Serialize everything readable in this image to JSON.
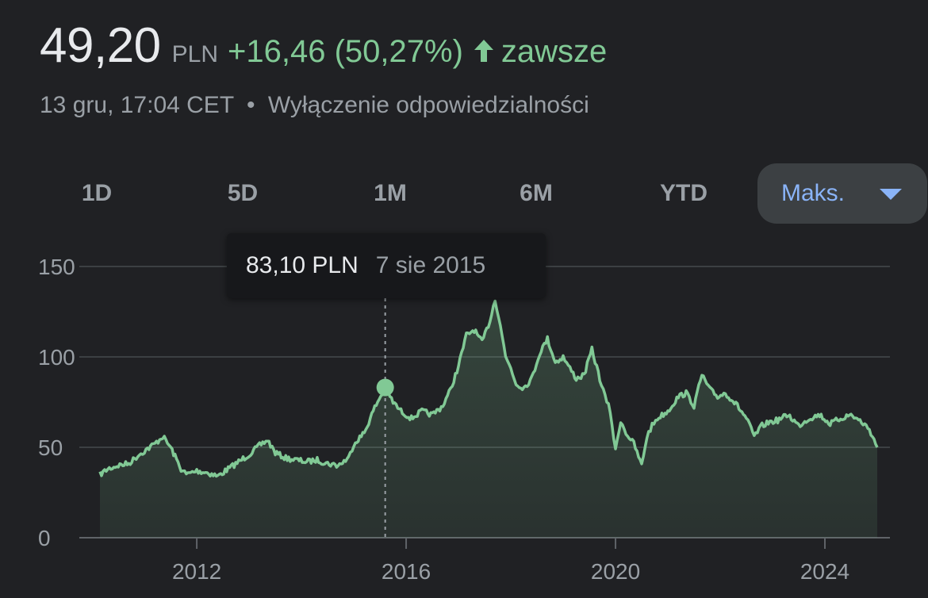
{
  "header": {
    "price": "49,20",
    "currency": "PLN",
    "change": "+16,46 (50,27%)",
    "range_word": "zawsze",
    "arrow_icon": "arrow-up-icon",
    "timestamp": "13 gru, 17:04 CET",
    "separator": "•",
    "disclaimer": "Wyłączenie odpowiedzialności"
  },
  "tabs": [
    {
      "label": "1D"
    },
    {
      "label": "5D"
    },
    {
      "label": "1M"
    },
    {
      "label": "6M"
    },
    {
      "label": "YTD"
    },
    {
      "label": "Maks.",
      "active": true
    }
  ],
  "tooltip": {
    "value": "83,10 PLN",
    "date": "7 sie 2015"
  },
  "colors": {
    "positive": "#81c995",
    "accent": "#8ab4f8",
    "background": "#202124"
  },
  "chart_data": {
    "type": "area",
    "title": "",
    "xlabel": "",
    "ylabel": "",
    "xlim": [
      2010.15,
      2025.0
    ],
    "ylim": [
      0,
      150
    ],
    "y_ticks": [
      "0",
      "50",
      "100",
      "150"
    ],
    "y_tick_values": [
      0,
      50,
      100,
      150
    ],
    "x_ticks": [
      "2012",
      "2016",
      "2020",
      "2024"
    ],
    "x_tick_values": [
      2012,
      2016,
      2020,
      2024
    ],
    "grid": true,
    "hover": {
      "x": 2015.6,
      "y": 83.1
    },
    "series": [
      {
        "x": [
          2010.15,
          2010.3,
          2010.5,
          2010.7,
          2010.9,
          2011.0,
          2011.2,
          2011.35,
          2011.5,
          2011.7,
          2011.8,
          2012.0,
          2012.2,
          2012.4,
          2012.6,
          2012.8,
          2013.0,
          2013.2,
          2013.35,
          2013.5,
          2013.7,
          2013.9,
          2014.1,
          2014.3,
          2014.5,
          2014.7,
          2014.9,
          2015.0,
          2015.2,
          2015.4,
          2015.6,
          2015.75,
          2015.9,
          2016.1,
          2016.3,
          2016.5,
          2016.7,
          2016.85,
          2017.0,
          2017.15,
          2017.3,
          2017.45,
          2017.6,
          2017.7,
          2017.8,
          2017.9,
          2018.0,
          2018.1,
          2018.25,
          2018.4,
          2018.55,
          2018.7,
          2018.85,
          2019.0,
          2019.1,
          2019.25,
          2019.4,
          2019.55,
          2019.7,
          2019.8,
          2019.9,
          2020.0,
          2020.1,
          2020.2,
          2020.35,
          2020.5,
          2020.6,
          2020.7,
          2020.8,
          2021.0,
          2021.2,
          2021.35,
          2021.5,
          2021.65,
          2021.8,
          2021.95,
          2022.1,
          2022.3,
          2022.5,
          2022.65,
          2022.8,
          2022.95,
          2023.1,
          2023.3,
          2023.5,
          2023.7,
          2023.9,
          2024.1,
          2024.3,
          2024.5,
          2024.7,
          2024.85,
          2025.0
        ],
        "values": [
          35,
          38,
          40,
          41,
          46,
          48,
          52,
          56,
          50,
          38,
          35,
          37,
          36,
          34,
          38,
          42,
          46,
          51,
          54,
          47,
          44,
          43,
          42,
          43,
          41,
          40,
          44,
          52,
          58,
          72,
          83,
          75,
          70,
          66,
          70,
          68,
          73,
          82,
          95,
          112,
          115,
          108,
          120,
          132,
          118,
          100,
          94,
          85,
          83,
          88,
          102,
          110,
          97,
          100,
          95,
          88,
          90,
          104,
          88,
          78,
          70,
          48,
          65,
          58,
          52,
          40,
          56,
          62,
          66,
          70,
          78,
          80,
          73,
          90,
          82,
          78,
          80,
          74,
          66,
          56,
          62,
          64,
          65,
          68,
          62,
          66,
          68,
          63,
          66,
          68,
          64,
          60,
          50
        ]
      }
    ]
  }
}
